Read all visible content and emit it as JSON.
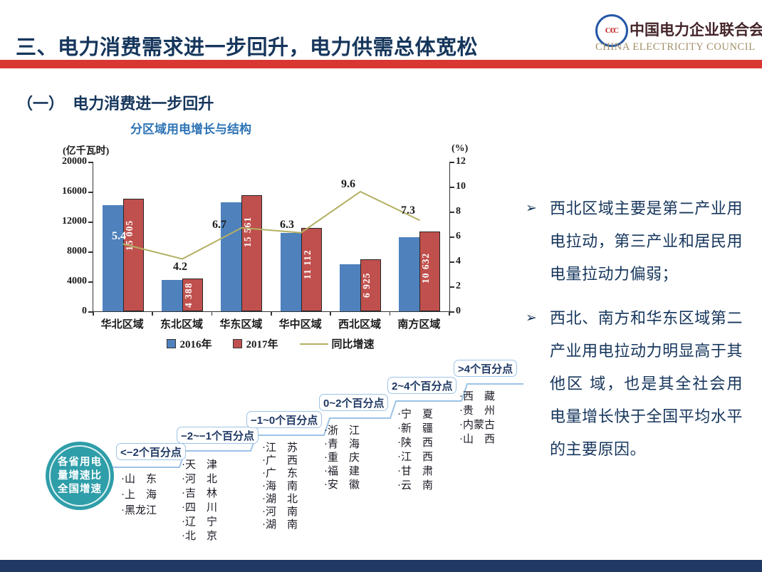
{
  "header": {
    "title": "三、电力消费需求进一步回升，电力供需总体宽松",
    "logo": {
      "org_cn": "中国电力企业联合会",
      "org_en": "CHINA ELECTRICITY COUNCIL"
    },
    "accent_color": "#D93832"
  },
  "section": {
    "heading": "（一）  电力消费进一步回升"
  },
  "chart": {
    "title": "分区域用电增长与结构",
    "left_axis_label": "(亿千瓦时)",
    "right_axis_label": "(%)",
    "left_ticks": [
      "20000",
      "16000",
      "12000",
      "8000",
      "4000",
      "0"
    ],
    "right_ticks": [
      "12",
      "10",
      "8",
      "6",
      "4",
      "2",
      "0"
    ],
    "legend": [
      {
        "label": "2016年",
        "color": "#4F81BD",
        "type": "square"
      },
      {
        "label": "2017年",
        "color": "#C0504D",
        "type": "square"
      },
      {
        "label": "同比增速",
        "color": "#B3B063",
        "type": "line"
      }
    ]
  },
  "chart_data": {
    "type": "bar",
    "title": "分区域用电增长与结构",
    "categories": [
      "华北区域",
      "东北区域",
      "华东区域",
      "华中区域",
      "西北区域",
      "南方区域"
    ],
    "series": [
      {
        "name": "2016年",
        "type": "bar",
        "axis": "left",
        "color": "#4F81BD",
        "values": [
          14230,
          4210,
          14580,
          10450,
          6320,
          9910
        ]
      },
      {
        "name": "2017年",
        "type": "bar",
        "axis": "left",
        "color": "#C0504D",
        "values": [
          15005,
          4388,
          15561,
          11112,
          6925,
          10632
        ],
        "labels": [
          "15 005",
          "4 388",
          "15 561",
          "11 112",
          "6 925",
          "10 632"
        ]
      },
      {
        "name": "同比增速",
        "type": "line",
        "axis": "right",
        "color": "#B3B063",
        "values": [
          5.4,
          4.2,
          6.7,
          6.3,
          9.6,
          7.3
        ],
        "labels": [
          "5.4",
          "4.2",
          "6.7",
          "6.3",
          "9.6",
          "7.3"
        ]
      }
    ],
    "left_ylabel": "(亿千瓦时)",
    "right_ylabel": "(%)",
    "left_ylim": [
      0,
      20000
    ],
    "right_ylim": [
      0,
      12
    ],
    "grid": false,
    "legend_position": "bottom"
  },
  "diagram": {
    "hub": {
      "lines": [
        "各省用电",
        "量增速比",
        "全国增速"
      ]
    },
    "groups": [
      {
        "label": "<−2个百分点",
        "provinces": [
          "山　东",
          "上　海",
          "黑龙江"
        ]
      },
      {
        "label": "−2~−1个百分点",
        "provinces": [
          "天　津",
          "河　北",
          "吉　林",
          "四　川",
          "辽　宁",
          "北　京"
        ]
      },
      {
        "label": "−1~0个百分点",
        "provinces": [
          "江　苏",
          "广　西",
          "广　东",
          "海　南",
          "湖　北",
          "河　南",
          "湖　南"
        ]
      },
      {
        "label": "0~2个百分点",
        "provinces": [
          "浙　江",
          "青　海",
          "重　庆",
          "福　建",
          "安　徽"
        ]
      },
      {
        "label": "2~4个百分点",
        "provinces": [
          "宁　夏",
          "新　疆",
          "陕　西",
          "江　西",
          "甘　肃",
          "云　南"
        ]
      },
      {
        "label": ">4个百分点",
        "provinces": [
          "西　藏",
          "贵　州",
          "内蒙古",
          "山　西"
        ]
      }
    ]
  },
  "insights": {
    "bullet_char": "➢",
    "items": [
      "西北区域主要是第二产业用电拉动，第三产业和居民用电量拉动力偏弱；",
      "西北、南方和华东区域第二产业用电拉动力明显高于其他区 域，也是其全社会用电量增长快于全国平均水平的主要原因。"
    ]
  },
  "colors": {
    "title_navy": "#16365C",
    "chart_title_blue": "#2E74B6",
    "bar_2016": "#4F81BD",
    "bar_2017": "#C0504D",
    "growth_line": "#B3B063",
    "stairs_blue": "#9DC3E6",
    "hub_teal": "#2E9EA9",
    "divider_red": "#D93832",
    "bottom_bar_navy": "#1F3864"
  }
}
